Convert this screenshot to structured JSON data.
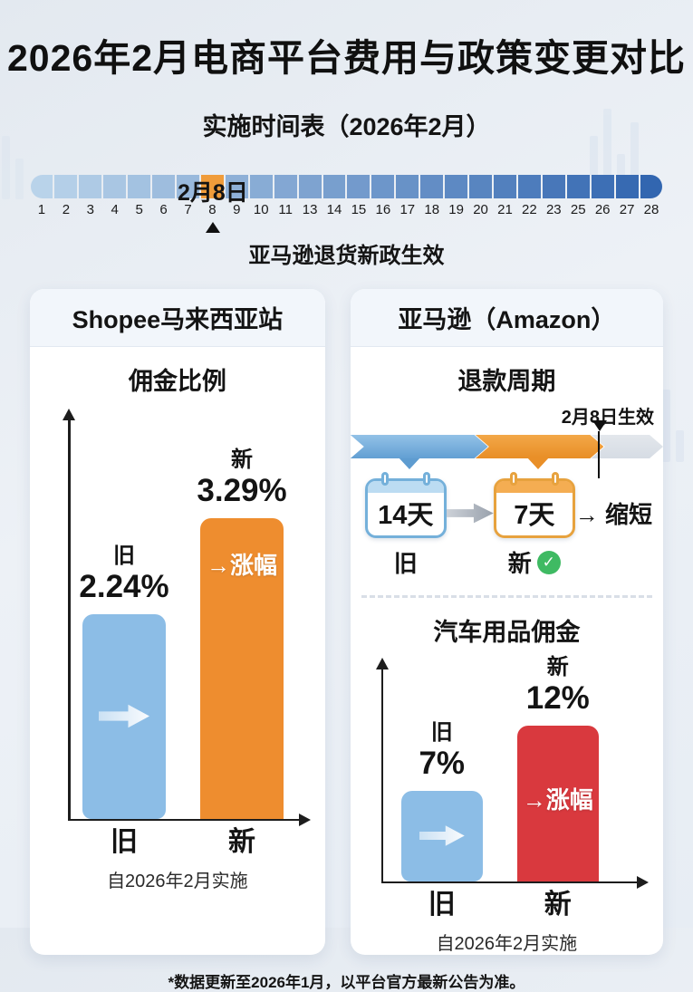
{
  "header": {
    "title": "2026年2月电商平台费用与政策变更对比",
    "subtitle": "实施时间表（2026年2月）"
  },
  "timeline": {
    "date_label": "2月8日",
    "event_label": "亚马逊退货新政生效",
    "days": [
      "1",
      "2",
      "3",
      "4",
      "5",
      "6",
      "7",
      "8",
      "9",
      "10",
      "11",
      "13",
      "14",
      "15",
      "16",
      "17",
      "18",
      "19",
      "20",
      "21",
      "22",
      "23",
      "25",
      "26",
      "27",
      "28"
    ],
    "highlight_index": 7,
    "colors": {
      "start": "#B9D3EA",
      "end": "#3266B0",
      "highlight": "#F09C3A"
    }
  },
  "shopee_card": {
    "title": "Shopee马来西亚站",
    "section_title": "佣金比例",
    "old_cat": "旧",
    "old_value": "2.24%",
    "new_cat": "新",
    "new_value": "3.29%",
    "change_label": "→涨幅",
    "axis_old": "旧",
    "axis_new": "新",
    "caption": "自2026年2月实施"
  },
  "amazon_card": {
    "title": "亚马逊（Amazon）",
    "refund": {
      "section_title": "退款周期",
      "effective_label": "2月8日生效",
      "old_value": "14天",
      "old_label": "旧",
      "new_value": "7天",
      "new_label": "新",
      "check_glyph": "✓",
      "result_label": "→ 缩短"
    },
    "commission": {
      "section_title": "汽车用品佣金",
      "old_cat": "旧",
      "old_value": "7%",
      "new_cat": "新",
      "new_value": "12%",
      "change_label": "→涨幅",
      "axis_old": "旧",
      "axis_new": "新",
      "caption": "自2026年2月实施"
    }
  },
  "footnote": "*数据更新至2026年1月，以平台官方最新公告为准。",
  "chart_data": [
    {
      "type": "bar",
      "title": "Shopee马来西亚站 佣金比例",
      "categories": [
        "旧",
        "新"
      ],
      "values": [
        2.24,
        3.29
      ],
      "unit": "%",
      "labels": [
        "2.24%",
        "3.29%"
      ],
      "colors": [
        "#8CBDE6",
        "#EE8D2F"
      ],
      "annotation": "→涨幅",
      "note": "自2026年2月实施",
      "ylim": [
        0,
        3.29
      ],
      "grid": false,
      "legend": "none"
    },
    {
      "type": "bar",
      "title": "亚马逊 汽车用品佣金",
      "categories": [
        "旧",
        "新"
      ],
      "values": [
        7,
        12
      ],
      "unit": "%",
      "labels": [
        "7%",
        "12%"
      ],
      "colors": [
        "#8CBDE6",
        "#D9393E"
      ],
      "annotation": "→涨幅",
      "note": "自2026年2月实施",
      "ylim": [
        0,
        12
      ],
      "grid": false,
      "legend": "none"
    },
    {
      "type": "table",
      "title": "亚马逊 退款周期",
      "columns": [
        "旧",
        "新"
      ],
      "rows": [
        [
          "14天",
          "7天"
        ]
      ],
      "annotation": "→ 缩短",
      "note": "2月8日生效"
    }
  ]
}
